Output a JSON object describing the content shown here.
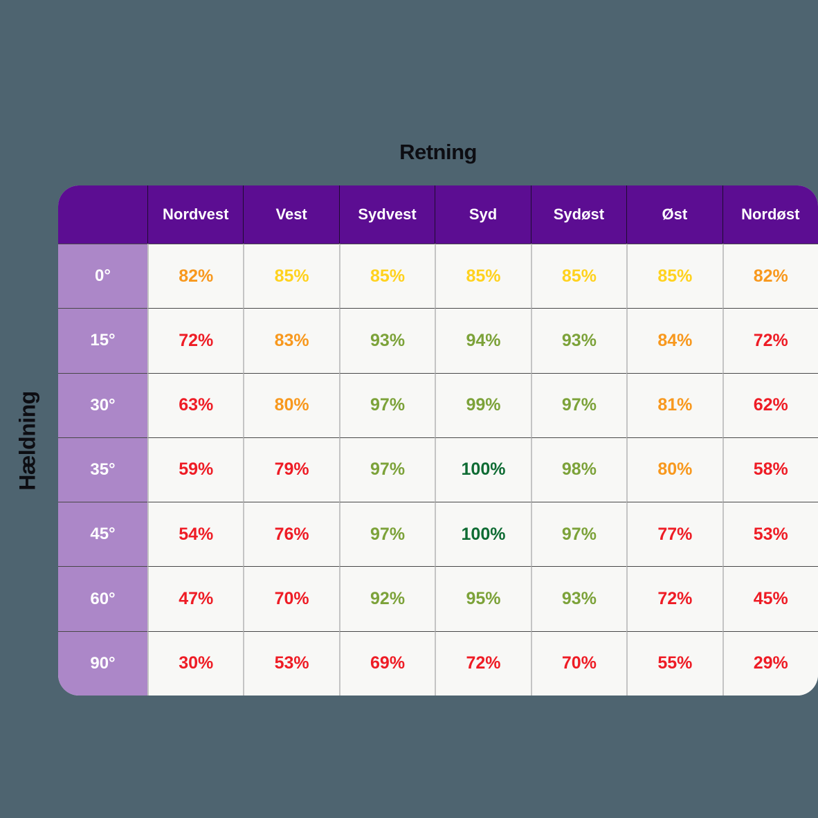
{
  "title": "Retning",
  "row_axis_label": "Hældning",
  "chart_data": {
    "type": "heatmap",
    "x_axis_label": "Retning",
    "y_axis_label": "Hældning",
    "columns": [
      "Nordvest",
      "Vest",
      "Sydvest",
      "Syd",
      "Sydøst",
      "Øst",
      "Nordøst"
    ],
    "rows": [
      "0°",
      "15°",
      "30°",
      "35°",
      "45°",
      "60°",
      "90°"
    ],
    "values": [
      [
        82,
        85,
        85,
        85,
        85,
        85,
        82
      ],
      [
        72,
        83,
        93,
        94,
        93,
        84,
        72
      ],
      [
        63,
        80,
        97,
        99,
        97,
        81,
        62
      ],
      [
        59,
        79,
        97,
        100,
        98,
        80,
        58
      ],
      [
        54,
        76,
        97,
        100,
        97,
        77,
        53
      ],
      [
        47,
        70,
        92,
        95,
        93,
        72,
        45
      ],
      [
        30,
        53,
        69,
        72,
        70,
        55,
        29
      ]
    ],
    "value_suffix": "%",
    "cell_colors": [
      [
        "orange",
        "yellow",
        "yellow",
        "yellow",
        "yellow",
        "yellow",
        "orange"
      ],
      [
        "red",
        "orange",
        "olive",
        "olive",
        "olive",
        "orange",
        "red"
      ],
      [
        "red",
        "orange",
        "olive",
        "olive",
        "olive",
        "orange",
        "red"
      ],
      [
        "red",
        "red",
        "olive",
        "green",
        "olive",
        "orange",
        "red"
      ],
      [
        "red",
        "red",
        "olive",
        "green",
        "olive",
        "red",
        "red"
      ],
      [
        "red",
        "red",
        "olive",
        "olive",
        "olive",
        "red",
        "red"
      ],
      [
        "red",
        "red",
        "red",
        "red",
        "red",
        "red",
        "red"
      ]
    ],
    "palette": {
      "red": "#EE1C25",
      "orange": "#F8981D",
      "yellow": "#FFD21E",
      "olive": "#7CA239",
      "green": "#0E6B33"
    },
    "layout_hints": {
      "legend": "none",
      "grid": "on",
      "value_range": [
        0,
        100
      ]
    },
    "style": {
      "background": "#4E6470",
      "header_bg": "#5C0D92",
      "header_text": "#FFFFFF",
      "header_divider": "#1D0B30",
      "row_header_bg": "#AC87C8",
      "cell_bg": "#F8F8F6",
      "grid_vertical": "#C4C4C4",
      "grid_horizontal": "#474747",
      "title_color": "#0D0D12"
    }
  }
}
